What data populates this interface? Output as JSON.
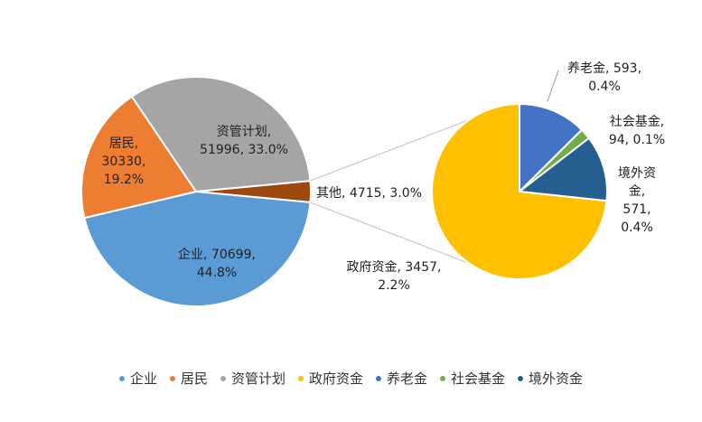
{
  "chart_data": [
    {
      "type": "pie",
      "slices": [
        {
          "name": "企业",
          "value": 70699,
          "percent": "44.8%",
          "color": "#5b9bd5",
          "label_lines": [
            "企业, 70699,",
            "44.8%"
          ]
        },
        {
          "name": "居民",
          "value": 30330,
          "percent": "19.2%",
          "color": "#ed7d31",
          "label_lines": [
            "居民,",
            "30330,",
            "19.2%"
          ]
        },
        {
          "name": "资管计划",
          "value": 51996,
          "percent": "33.0%",
          "color": "#a5a5a5",
          "label_lines": [
            "资管计划,",
            "51996, 33.0%"
          ]
        },
        {
          "name": "其他",
          "value": 4715,
          "percent": "3.0%",
          "color": "#9e480e",
          "label_lines": [
            "其他, 4715, 3.0%"
          ]
        }
      ]
    },
    {
      "type": "pie",
      "breakdown_of": "其他",
      "slices": [
        {
          "name": "政府资金",
          "value": 3457,
          "percent": "2.2%",
          "color": "#ffc000",
          "label_lines": [
            "政府资金, 3457,",
            "2.2%"
          ]
        },
        {
          "name": "养老金",
          "value": 593,
          "percent": "0.4%",
          "color": "#4472c4",
          "label_lines": [
            "养老金, 593,",
            "0.4%"
          ]
        },
        {
          "name": "社会基金",
          "value": 94,
          "percent": "0.1%",
          "color": "#70ad47",
          "label_lines": [
            "社会基金,",
            "94, 0.1%"
          ]
        },
        {
          "name": "境外资金",
          "value": 571,
          "percent": "0.4%",
          "color": "#255e91",
          "label_lines": [
            "境外资",
            "金,",
            "571,",
            "0.4%"
          ]
        }
      ]
    }
  ],
  "legend": [
    {
      "label": "企业",
      "color": "#5b9bd5"
    },
    {
      "label": "居民",
      "color": "#ed7d31"
    },
    {
      "label": "资管计划",
      "color": "#a5a5a5"
    },
    {
      "label": "政府资金",
      "color": "#ffc000"
    },
    {
      "label": "养老金",
      "color": "#4472c4"
    },
    {
      "label": "社会基金",
      "color": "#70ad47"
    },
    {
      "label": "境外资金",
      "color": "#255e91"
    }
  ]
}
